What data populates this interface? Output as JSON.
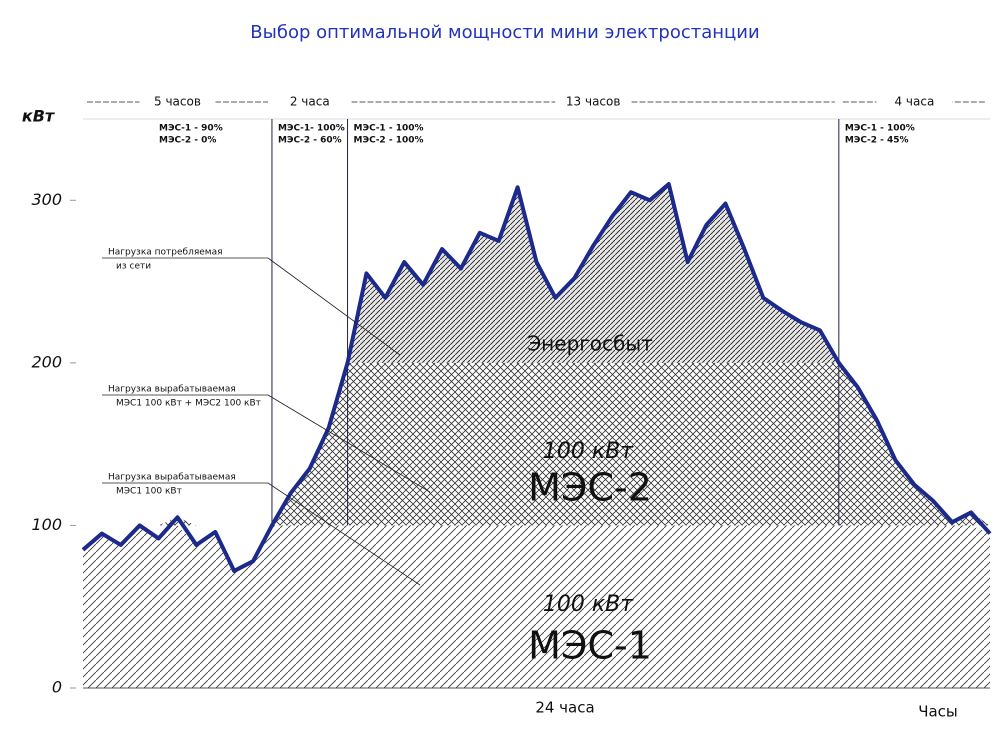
{
  "chart_data": {
    "type": "area",
    "title": "Выбор оптимальной мощности мини электростанции",
    "y_label": "кВт",
    "x_label": "24 часа",
    "x_unit_label": "Часы",
    "xlim": [
      0,
      24
    ],
    "ylim": [
      0,
      350
    ],
    "yticks": [
      0,
      100,
      200,
      300
    ],
    "color": "#1c2a8c",
    "x": [
      0,
      0.5,
      1,
      1.5,
      2,
      2.5,
      3,
      3.5,
      4,
      4.5,
      5,
      5.5,
      6,
      6.5,
      7,
      7.5,
      8,
      8.5,
      9,
      9.5,
      10,
      10.5,
      11,
      11.5,
      12,
      12.5,
      13,
      13.5,
      14,
      14.5,
      15,
      15.5,
      16,
      16.5,
      17,
      17.5,
      18,
      18.5,
      19,
      19.5,
      20,
      20.5,
      21,
      21.5,
      22,
      22.5,
      23,
      23.5,
      24
    ],
    "values": [
      85,
      95,
      88,
      100,
      92,
      105,
      88,
      96,
      72,
      78,
      100,
      120,
      135,
      160,
      200,
      255,
      240,
      262,
      248,
      270,
      258,
      280,
      275,
      308,
      262,
      240,
      252,
      272,
      290,
      305,
      300,
      310,
      262,
      285,
      298,
      270,
      240,
      232,
      225,
      220,
      200,
      185,
      165,
      140,
      125,
      115,
      102,
      108,
      95
    ],
    "periods": [
      {
        "label": "5 часов",
        "hours": 5,
        "modes": [
          "МЭС-1 - 90%",
          "МЭС-2 - 0%"
        ]
      },
      {
        "label": "2 часа",
        "hours": 2,
        "modes": [
          "МЭС-1- 100%",
          "МЭС-2 - 60%"
        ]
      },
      {
        "label": "13 часов",
        "hours": 13,
        "modes": [
          "МЭС-1 - 100%",
          "МЭС-2 - 100%"
        ]
      },
      {
        "label": "4 часа",
        "hours": 4,
        "modes": [
          "МЭС-1 - 100%",
          "МЭС-2 - 45%"
        ]
      }
    ],
    "tiers": [
      {
        "name": "МЭС-1",
        "capacity": 100,
        "capacity_label": "100 кВт"
      },
      {
        "name": "МЭС-2",
        "capacity": 100,
        "capacity_label": "100 кВт"
      },
      {
        "name": "Энергосбыт"
      }
    ],
    "callouts": [
      [
        "Нагрузка потребляемая",
        "из сети"
      ],
      [
        "Нагрузка вырабатываемая",
        "МЭС1 100 кВт + МЭС2 100 кВт"
      ],
      [
        "Нагрузка вырабатываемая",
        "МЭС1 100 кВт"
      ]
    ]
  }
}
